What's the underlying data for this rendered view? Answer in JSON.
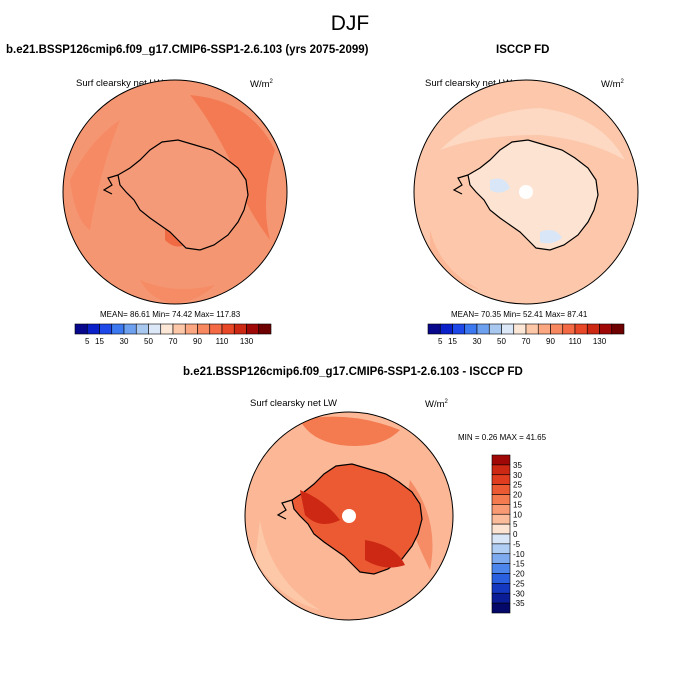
{
  "title": "DJF",
  "panels": [
    {
      "title": "b.e21.BSSP126cmip6.f09_g17.CMIP6-SSP1-2.6.103 (yrs 2075-2099)",
      "variable": "Surf clearsky net LW",
      "units": "W/m",
      "units_sup": "2",
      "stats_text": "MEAN=  86.61  Min=  74.42  Max= 117.83",
      "stats": {
        "mean": 86.61,
        "min": 74.42,
        "max": 117.83
      }
    },
    {
      "title": "ISCCP FD",
      "variable": "Surf clearsky net LW",
      "units": "W/m",
      "units_sup": "2",
      "stats_text": "MEAN=  70.35  Min=  52.41  Max=  87.41",
      "stats": {
        "mean": 70.35,
        "min": 52.41,
        "max": 87.41
      }
    },
    {
      "title": "b.e21.BSSP126cmip6.f09_g17.CMIP6-SSP1-2.6.103 - ISCCP FD",
      "variable": "Surf clearsky net LW",
      "units": "W/m",
      "units_sup": "2",
      "stats_text": "MIN =  0.26 MAX =  41.65",
      "stats": {
        "min": 0.26,
        "max": 41.65
      }
    }
  ],
  "colorbar_horizontal": {
    "tick_labels": [
      "5",
      "15",
      "30",
      "50",
      "70",
      "90",
      "110",
      "130"
    ],
    "colors": [
      "#08088c",
      "#0a20c8",
      "#1e48e8",
      "#3c78f0",
      "#6ea0f0",
      "#a8c8f0",
      "#dce8f8",
      "#fde8d8",
      "#fcc8a8",
      "#fba882",
      "#f88860",
      "#f46a44",
      "#e84828",
      "#cc2814",
      "#a00808",
      "#6e0000"
    ]
  },
  "colorbar_vertical": {
    "tick_labels": [
      "35",
      "30",
      "25",
      "20",
      "15",
      "10",
      "5",
      "0",
      "-5",
      "-10",
      "-15",
      "-20",
      "-25",
      "-30",
      "-35"
    ],
    "colors": [
      "#a00808",
      "#cc2814",
      "#e03c20",
      "#ec5a34",
      "#f47a50",
      "#f89a74",
      "#fbbc9c",
      "#fde4d2",
      "#d8e6f8",
      "#b0cef4",
      "#7eaaf0",
      "#4c86ec",
      "#2a60e0",
      "#1438c0",
      "#0a1c96",
      "#040868"
    ]
  }
}
